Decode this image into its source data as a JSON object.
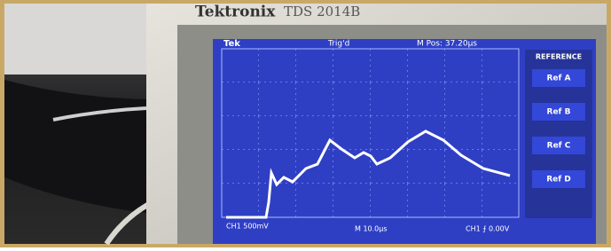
{
  "header": {
    "brand": "Tektronix",
    "model": "TDS 2014B"
  },
  "screen": {
    "status": "Tek",
    "trigger": "Trig'd",
    "position": "M Pos: 37.20µs",
    "menu": {
      "title": "REFERENCE",
      "items": [
        "Ref A",
        "Ref B",
        "Ref C",
        "Ref D"
      ]
    },
    "footer": {
      "channel": "CH1 500mV",
      "timebase": "M 10.0µs",
      "trigger_level": "CH1 ⨍ 0.00V"
    }
  }
}
